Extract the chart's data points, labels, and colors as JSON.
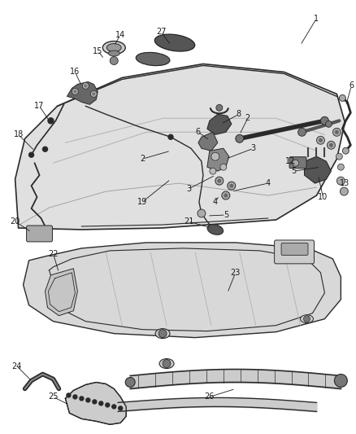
{
  "bg_color": "#ffffff",
  "fig_width": 4.38,
  "fig_height": 5.33,
  "dpi": 100,
  "line_color": "#2a2a2a",
  "text_color": "#1a1a1a",
  "label_fontsize": 7.0,
  "hood_fill": "#e0e0e0",
  "hood_inner_fill": "#d0d0d0",
  "part_dark": "#444444",
  "part_mid": "#777777",
  "part_light": "#aaaaaa"
}
